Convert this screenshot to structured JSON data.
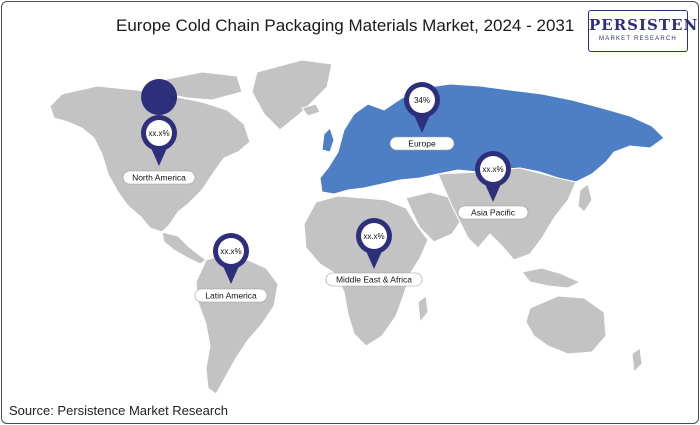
{
  "title": "Europe Cold Chain Packaging Materials Market, 2024 - 2031",
  "logo": {
    "main": "PERSISTENCE",
    "sub": "MARKET RESEARCH"
  },
  "source": "Source: Persistence Market Research",
  "colors": {
    "highlight": "#4e7fc4",
    "land": "#c3c3c3",
    "pin": "#2d2f7c"
  },
  "regions": [
    {
      "name": "North America",
      "value": "xx.x%",
      "highlighted": false
    },
    {
      "name": "Europe",
      "value": "34%",
      "highlighted": true
    },
    {
      "name": "Asia Pacific",
      "value": "xx.x%",
      "highlighted": false
    },
    {
      "name": "Latin America",
      "value": "xx.x%",
      "highlighted": false
    },
    {
      "name": "Middle East & Africa",
      "value": "xx.x%",
      "highlighted": false
    }
  ]
}
